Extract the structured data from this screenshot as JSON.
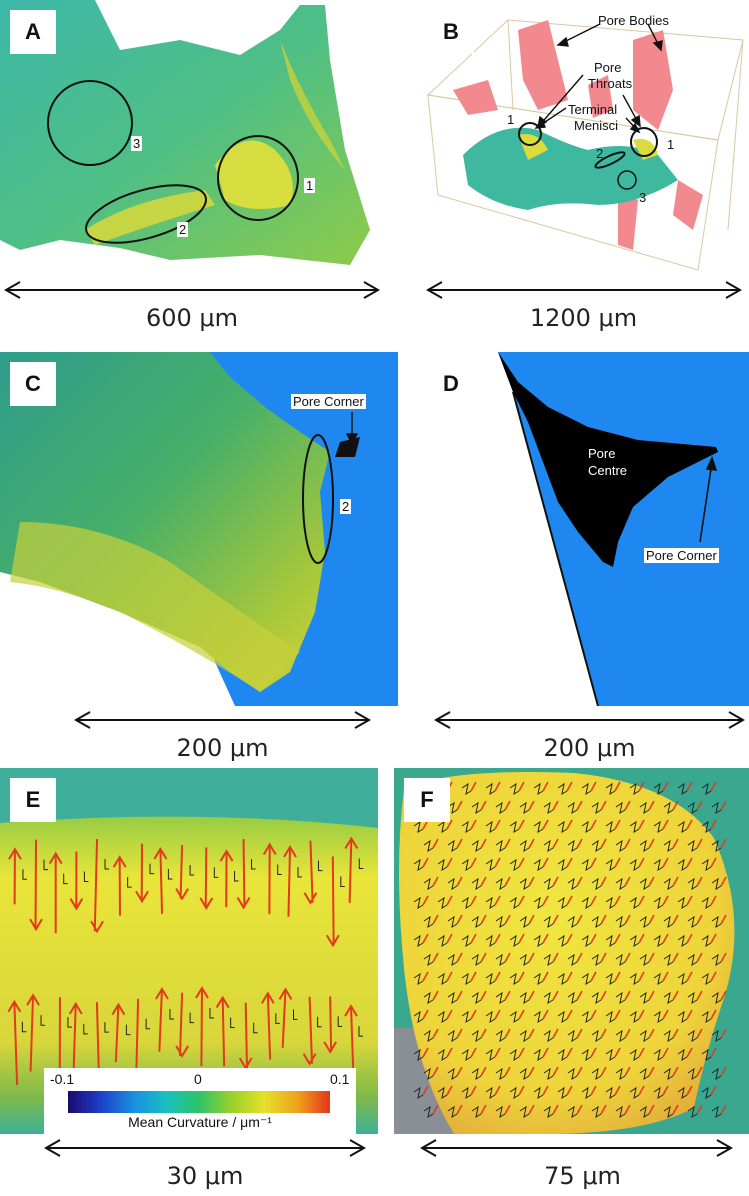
{
  "panels": {
    "A": {
      "label": "A",
      "scale": "600 μm",
      "markers": [
        "3",
        "1",
        "2"
      ]
    },
    "B": {
      "label": "B",
      "scale": "1200 μm",
      "annotations": {
        "pore_bodies": "Pore Bodies",
        "pore_throats_1": "Pore",
        "pore_throats_2": "Throats",
        "terminal_menisci_1": "Terminal",
        "terminal_menisci_2": "Menisci"
      },
      "markers": [
        "1",
        "1",
        "2",
        "3"
      ]
    },
    "C": {
      "label": "C",
      "scale": "200 μm",
      "annotations": {
        "pore_corner": "Pore Corner"
      },
      "markers": [
        "2"
      ]
    },
    "D": {
      "label": "D",
      "scale": "200 μm",
      "annotations": {
        "pore_centre_1": "Pore",
        "pore_centre_2": "Centre",
        "pore_corner": "Pore Corner"
      }
    },
    "E": {
      "label": "E",
      "scale": "30 μm"
    },
    "F": {
      "label": "F",
      "scale": "75 μm"
    }
  },
  "colorbar": {
    "title": "Mean Curvature / μm⁻¹",
    "ticks": [
      "-0.1",
      "0",
      "0.1"
    ]
  },
  "colors": {
    "pore_blue": "#1e88f0",
    "surface_green": "#3fb89c",
    "surface_yellow": "#e8e33a",
    "arrow_red": "#e23a1e",
    "pore_bodies_pink": "#f2898f"
  }
}
